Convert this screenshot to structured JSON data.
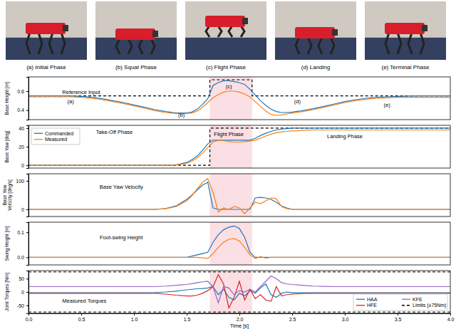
{
  "photos": {
    "captions": [
      "(a) Initial Phase",
      "(b) Squat Phase",
      "(c) Flight Phase",
      "(d) Landing",
      "(e) Terminal Phase"
    ]
  },
  "chart_data": [
    {
      "type": "line",
      "ylabel": "Base Height [m]",
      "xlim": [
        0,
        4
      ],
      "ylim": [
        0.3,
        0.75
      ],
      "yticks": [
        0.4,
        0.6
      ],
      "highlight": [
        1.72,
        2.12
      ],
      "annotations": [
        "Reference Input",
        "(a)",
        "(b)",
        "(c)",
        "(d)",
        "(e)"
      ],
      "x": [
        0,
        0.1,
        0.2,
        0.3,
        0.4,
        0.5,
        0.6,
        0.7,
        0.8,
        0.9,
        1.0,
        1.1,
        1.2,
        1.3,
        1.4,
        1.5,
        1.55,
        1.6,
        1.65,
        1.7,
        1.75,
        1.8,
        1.85,
        1.9,
        1.95,
        2.0,
        2.05,
        2.1,
        2.15,
        2.2,
        2.25,
        2.3,
        2.35,
        2.4,
        2.45,
        2.5,
        2.6,
        2.7,
        2.8,
        2.9,
        3.0,
        3.1,
        3.2,
        3.3,
        3.4,
        3.5,
        3.6,
        3.7,
        3.8,
        3.9,
        4.0
      ],
      "reference": {
        "color": "#000000",
        "line_style": "dashed",
        "x": [
          0,
          1.72,
          1.72,
          2.12,
          2.12,
          4
        ],
        "values": [
          0.55,
          0.55,
          0.72,
          0.72,
          0.55,
          0.55
        ]
      },
      "series": [
        {
          "color": "#1f77b4",
          "line_style": "solid",
          "values": [
            0.55,
            0.55,
            0.55,
            0.55,
            0.55,
            0.545,
            0.535,
            0.52,
            0.5,
            0.48,
            0.455,
            0.43,
            0.405,
            0.385,
            0.37,
            0.37,
            0.38,
            0.41,
            0.46,
            0.52,
            0.66,
            0.69,
            0.71,
            0.71,
            0.7,
            0.69,
            0.67,
            0.62,
            0.56,
            0.5,
            0.45,
            0.41,
            0.385,
            0.375,
            0.375,
            0.38,
            0.395,
            0.415,
            0.44,
            0.465,
            0.49,
            0.51,
            0.525,
            0.535,
            0.54,
            0.545,
            0.548,
            0.55,
            0.55,
            0.55,
            0.55
          ]
        },
        {
          "color": "#ff7f0e",
          "line_style": "solid",
          "values": [
            0.54,
            0.54,
            0.54,
            0.54,
            0.54,
            0.535,
            0.525,
            0.51,
            0.49,
            0.47,
            0.445,
            0.42,
            0.395,
            0.375,
            0.365,
            0.365,
            0.37,
            0.39,
            0.43,
            0.48,
            0.53,
            0.565,
            0.59,
            0.6,
            0.6,
            0.59,
            0.57,
            0.54,
            0.49,
            0.44,
            0.39,
            0.355,
            0.345,
            0.35,
            0.36,
            0.37,
            0.385,
            0.405,
            0.43,
            0.455,
            0.48,
            0.5,
            0.515,
            0.525,
            0.53,
            0.535,
            0.535,
            0.535,
            0.535,
            0.535,
            0.535
          ]
        }
      ]
    },
    {
      "type": "line",
      "ylabel": "Base Yaw [deg]",
      "xlim": [
        0,
        4
      ],
      "ylim": [
        -3,
        43
      ],
      "yticks": [
        0,
        20,
        40
      ],
      "highlight": [
        1.72,
        2.12
      ],
      "legend": "upper left",
      "annotations": [
        "Take-Off Phase",
        "Flight Phase",
        "Landing Phase"
      ],
      "x": [
        0,
        0.1,
        0.2,
        0.3,
        0.4,
        0.5,
        0.6,
        0.7,
        0.8,
        0.9,
        1.0,
        1.1,
        1.2,
        1.3,
        1.4,
        1.5,
        1.55,
        1.6,
        1.65,
        1.7,
        1.75,
        1.8,
        1.85,
        1.9,
        1.95,
        2.0,
        2.05,
        2.1,
        2.15,
        2.2,
        2.25,
        2.3,
        2.35,
        2.4,
        2.45,
        2.5,
        2.6,
        2.7,
        2.8,
        2.9,
        3.0,
        3.1,
        3.2,
        3.3,
        3.4,
        3.5,
        3.6,
        3.7,
        3.8,
        3.9,
        4.0
      ],
      "reference": {
        "color": "#000000",
        "line_style": "dashed",
        "x": [
          0,
          1.72,
          1.72,
          4
        ],
        "values": [
          0,
          0,
          40,
          40
        ]
      },
      "series": [
        {
          "name": "Commanded",
          "color": "#1f77b4",
          "line_style": "solid",
          "values": [
            0,
            0,
            0,
            0,
            0,
            0,
            0,
            0,
            0,
            0,
            0,
            0,
            0,
            0,
            0.5,
            3,
            6,
            10,
            16,
            23,
            27,
            27,
            27,
            27,
            27,
            27,
            27,
            27,
            29,
            32,
            34.5,
            36.5,
            38,
            39,
            39.5,
            40,
            40,
            40,
            40,
            40,
            40,
            40,
            40,
            40,
            40,
            40,
            40,
            40,
            40,
            40,
            40
          ]
        },
        {
          "name": "Measured",
          "color": "#ff7f0e",
          "line_style": "solid",
          "values": [
            0,
            0,
            0,
            0,
            0,
            0,
            0,
            0,
            0,
            0,
            0,
            0,
            0,
            0,
            0.3,
            2,
            4.5,
            8,
            13,
            19,
            25,
            27,
            26.5,
            25.5,
            25,
            25,
            25.5,
            26,
            27,
            29,
            31.5,
            33.5,
            35,
            36,
            36.5,
            37,
            37.5,
            38,
            38,
            38,
            38,
            38,
            38,
            38,
            38,
            38,
            38,
            38,
            38,
            38,
            38
          ]
        }
      ]
    },
    {
      "type": "line",
      "ylabel": [
        "Base Yaw",
        "Velocity [deg/s]"
      ],
      "xlim": [
        0,
        4
      ],
      "ylim": [
        -25,
        125
      ],
      "yticks": [
        0,
        100
      ],
      "highlight": [
        1.72,
        2.12
      ],
      "annotations": [
        "Base Yaw Velocity"
      ],
      "x": [
        0,
        0.1,
        0.2,
        0.3,
        0.4,
        0.5,
        0.6,
        0.7,
        0.8,
        0.9,
        1.0,
        1.1,
        1.2,
        1.3,
        1.4,
        1.5,
        1.55,
        1.6,
        1.65,
        1.7,
        1.75,
        1.8,
        1.85,
        1.9,
        1.95,
        2.0,
        2.05,
        2.1,
        2.15,
        2.2,
        2.25,
        2.3,
        2.35,
        2.4,
        2.45,
        2.5,
        2.6,
        2.7,
        2.8,
        2.9,
        3.0,
        3.1,
        3.2,
        3.3,
        3.4,
        3.5,
        3.6,
        3.7,
        3.8,
        3.9,
        4.0
      ],
      "series": [
        {
          "color": "#1f77b4",
          "line_style": "solid",
          "values": [
            0,
            0,
            0,
            0,
            0,
            0,
            0,
            0,
            0,
            0,
            0,
            0,
            0,
            3,
            12,
            35,
            50,
            68,
            85,
            95,
            5,
            0,
            0,
            0,
            0,
            0,
            0,
            0,
            40,
            42,
            40,
            35,
            25,
            12,
            5,
            0,
            0,
            0,
            0,
            0,
            0,
            0,
            0,
            0,
            0,
            0,
            0,
            0,
            0,
            0,
            0
          ]
        },
        {
          "color": "#ff7f0e",
          "line_style": "solid",
          "values": [
            0,
            0,
            0,
            0,
            0,
            0,
            0,
            0,
            0,
            0,
            0,
            0,
            0,
            2,
            10,
            30,
            48,
            72,
            95,
            108,
            60,
            -10,
            5,
            0,
            10,
            5,
            -15,
            5,
            25,
            20,
            30,
            40,
            38,
            10,
            2,
            0,
            0,
            0,
            0,
            0,
            0,
            0,
            0,
            0,
            0,
            0,
            0,
            0,
            0,
            0,
            0
          ]
        }
      ]
    },
    {
      "type": "line",
      "ylabel": "Swing Height [m]",
      "xlim": [
        0,
        4
      ],
      "ylim": [
        -0.03,
        0.14
      ],
      "yticks": [
        {
          "value": 0,
          "label": "0.0"
        },
        0.1
      ],
      "highlight": [
        1.72,
        2.12
      ],
      "annotations": [
        "Foot-swing Height"
      ],
      "x": [
        0,
        0.1,
        0.2,
        0.3,
        0.4,
        0.5,
        0.6,
        0.7,
        0.8,
        0.9,
        1.0,
        1.1,
        1.2,
        1.3,
        1.4,
        1.5,
        1.55,
        1.6,
        1.65,
        1.7,
        1.75,
        1.8,
        1.85,
        1.9,
        1.95,
        2.0,
        2.05,
        2.1,
        2.15,
        2.2,
        2.25,
        2.3,
        2.35,
        2.4,
        2.45,
        2.5,
        2.6,
        2.7,
        2.8,
        2.9,
        3.0,
        3.1,
        3.2,
        3.3,
        3.4,
        3.5,
        3.6,
        3.7,
        3.8,
        3.9,
        4.0
      ],
      "series": [
        {
          "color": "#1f77b4",
          "line_style": "solid",
          "values": [
            0,
            0,
            0,
            0,
            0,
            0,
            0,
            0,
            0,
            0,
            0,
            0,
            0,
            0,
            0,
            0,
            0.005,
            0.01,
            0.015,
            0.02,
            0.06,
            0.09,
            0.11,
            0.12,
            0.125,
            0.115,
            0.08,
            0.02,
            0,
            0,
            0,
            0,
            0,
            0,
            0,
            0,
            0,
            0,
            0,
            0,
            0,
            0,
            0,
            0,
            0,
            0,
            0,
            0,
            0,
            0,
            0
          ]
        },
        {
          "color": "#ff7f0e",
          "line_style": "solid",
          "values": [
            0,
            0,
            0,
            0,
            0,
            0,
            0,
            0,
            0,
            0,
            0,
            0,
            0,
            0,
            0,
            0,
            0,
            0,
            -0.002,
            -0.004,
            0.015,
            0.04,
            0.06,
            0.072,
            0.075,
            0.065,
            0.04,
            0.01,
            -0.005,
            0.003,
            -0.003,
            0,
            0,
            0,
            0,
            0,
            0,
            0,
            0,
            0,
            0,
            0,
            0,
            0,
            0,
            0,
            0,
            0,
            0,
            0,
            0
          ]
        }
      ]
    },
    {
      "type": "line",
      "ylabel": "Joint Torques [Nm]",
      "xlabel": "Time [s]",
      "xlim": [
        0,
        4
      ],
      "ylim": [
        -80,
        80
      ],
      "yticks": [
        -50,
        0,
        50
      ],
      "xticks": [
        {
          "value": 0,
          "label": "0.0"
        },
        0.5,
        {
          "value": 1,
          "label": "1.0"
        },
        1.5,
        {
          "value": 2,
          "label": "2.0"
        },
        2.5,
        {
          "value": 3,
          "label": "3.0"
        },
        3.5,
        {
          "value": 4,
          "label": "4.0"
        }
      ],
      "highlight": [
        1.72,
        2.12
      ],
      "legend": "lower right",
      "annotations": [
        "Measured Torques"
      ],
      "x": [
        0,
        0.1,
        0.2,
        0.3,
        0.4,
        0.5,
        0.6,
        0.7,
        0.8,
        0.9,
        1.0,
        1.1,
        1.2,
        1.3,
        1.4,
        1.5,
        1.55,
        1.6,
        1.65,
        1.7,
        1.75,
        1.8,
        1.85,
        1.9,
        1.95,
        2.0,
        2.05,
        2.1,
        2.15,
        2.2,
        2.25,
        2.3,
        2.35,
        2.4,
        2.45,
        2.5,
        2.6,
        2.7,
        2.8,
        2.9,
        3.0,
        3.1,
        3.2,
        3.3,
        3.4,
        3.5,
        3.6,
        3.7,
        3.8,
        3.9,
        4.0
      ],
      "limits": {
        "name": "Limits (±75Nm)",
        "color": "#000000",
        "line_style": "dashed",
        "values": [
          -75,
          75
        ]
      },
      "series": [
        {
          "name": "HAA",
          "color": "#1f77b4",
          "line_style": "solid",
          "values": [
            -3,
            -3,
            -3,
            -3,
            -3,
            -3,
            -3,
            -3,
            -3,
            -3,
            -3,
            -3,
            -2,
            0,
            3,
            8,
            10,
            12,
            13,
            15,
            20,
            -10,
            10,
            -20,
            -30,
            -5,
            -15,
            5,
            -5,
            15,
            30,
            -10,
            -20,
            -5,
            0,
            -3,
            -3,
            -3,
            -3,
            -3,
            -3,
            -3,
            -3,
            -3,
            -3,
            -3,
            -3,
            -3,
            -3,
            -3,
            -3
          ]
        },
        {
          "name": "HFE",
          "color": "#d62728",
          "line_style": "solid",
          "values": [
            -5,
            -5,
            -5,
            -5,
            -5,
            -5,
            -5,
            -5,
            -5,
            -5,
            -5,
            -5,
            -5,
            -8,
            -12,
            -15,
            -15,
            -12,
            -5,
            5,
            20,
            65,
            30,
            -60,
            -20,
            40,
            -30,
            10,
            -25,
            -10,
            -30,
            -35,
            20,
            -15,
            -10,
            -8,
            -6,
            -5,
            -5,
            -5,
            -5,
            -5,
            -5,
            -5,
            -5,
            -5,
            -5,
            -5,
            -5,
            -5,
            -5
          ]
        },
        {
          "name": "KFE",
          "color": "#9467bd",
          "line_style": "solid",
          "values": [
            20,
            20,
            20,
            20,
            20,
            20,
            20,
            20,
            20,
            20,
            20,
            20,
            20,
            22,
            25,
            28,
            31,
            35,
            38,
            40,
            20,
            -40,
            20,
            15,
            -10,
            5,
            0,
            10,
            0,
            20,
            40,
            60,
            50,
            35,
            30,
            28,
            25,
            22,
            21,
            20,
            20,
            20,
            20,
            20,
            20,
            20,
            20,
            20,
            20,
            20,
            20
          ]
        }
      ]
    }
  ]
}
